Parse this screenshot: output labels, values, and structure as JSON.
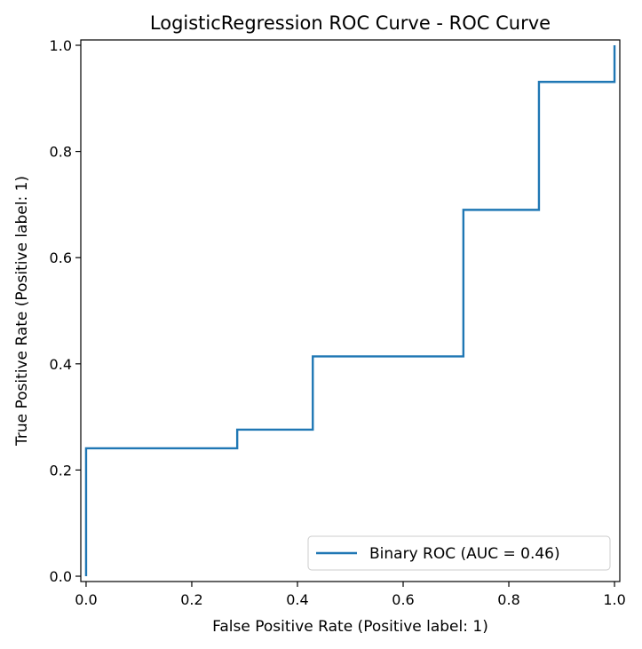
{
  "chart_data": {
    "type": "line",
    "title": "LogisticRegression ROC Curve - ROC Curve",
    "xlabel": "False Positive Rate (Positive label: 1)",
    "ylabel": "True Positive Rate (Positive label: 1)",
    "xlim": [
      -0.01,
      1.01
    ],
    "ylim": [
      -0.01,
      1.01
    ],
    "xticks": [
      "0.0",
      "0.2",
      "0.4",
      "0.6",
      "0.8",
      "1.0"
    ],
    "yticks": [
      "0.0",
      "0.2",
      "0.4",
      "0.6",
      "0.8",
      "1.0"
    ],
    "grid": false,
    "legend_position": "lower-right",
    "series": [
      {
        "name": "Binary ROC (AUC = 0.46)",
        "color": "#1f77b4",
        "x": [
          0.0,
          0.0,
          0.286,
          0.286,
          0.429,
          0.429,
          0.714,
          0.714,
          0.857,
          0.857,
          1.0,
          1.0
        ],
        "y": [
          0.0,
          0.241,
          0.241,
          0.276,
          0.276,
          0.414,
          0.414,
          0.69,
          0.69,
          0.931,
          0.931,
          1.0
        ]
      }
    ]
  }
}
